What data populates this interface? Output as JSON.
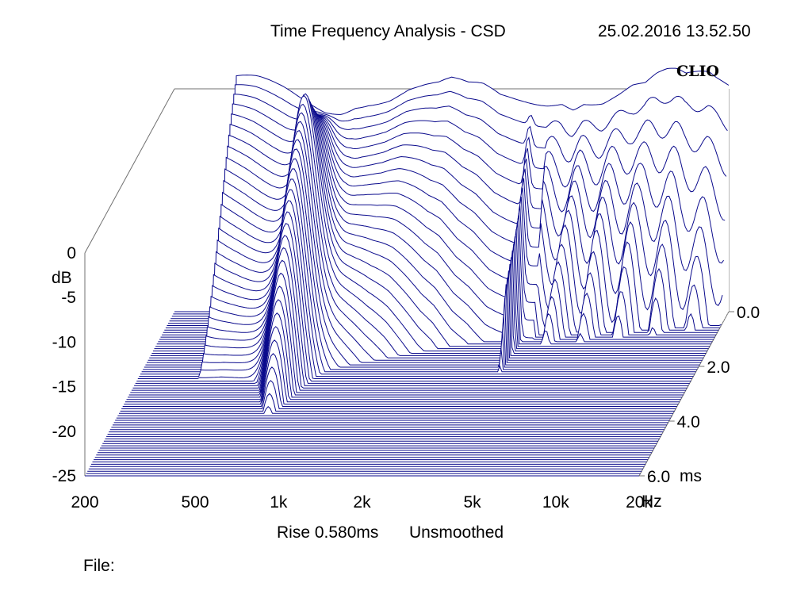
{
  "header": {
    "title": "Time Frequency Analysis - CSD",
    "timestamp": "25.02.2016 13.52.50"
  },
  "logo": "CLIO",
  "footer": {
    "rise": "Rise 0.580ms",
    "smoothing": "Unsmoothed",
    "file_label": "File:"
  },
  "chart_data": {
    "type": "waterfall",
    "title": "Time Frequency Analysis - CSD",
    "y_axis": {
      "label": "dB",
      "ticks": [
        "0",
        "-5",
        "-10",
        "-15",
        "-20",
        "-25"
      ],
      "range": [
        -25,
        0
      ]
    },
    "x_axis": {
      "unit": "Hz",
      "scale": "log",
      "ticks": [
        "200",
        "500",
        "1k",
        "2k",
        "5k",
        "10k",
        "20k"
      ],
      "range": [
        200,
        20000
      ]
    },
    "z_axis": {
      "unit": "ms",
      "ticks": [
        "0.0",
        "2.0",
        "4.0",
        "6.0"
      ],
      "range": [
        0,
        6
      ]
    },
    "line_color": "#0a0a8c",
    "initial_response": {
      "freq_hz": [
        330,
        400,
        500,
        600,
        700,
        800,
        900,
        1000,
        1200,
        1400,
        1600,
        1800,
        2000,
        2300,
        2600,
        3000,
        3400,
        3900,
        4400,
        5000,
        5500,
        6000,
        7000,
        8000,
        9000,
        10000,
        11000,
        12000,
        13000,
        14000,
        15000,
        16000,
        17000,
        18000,
        19000,
        20000
      ],
      "db": [
        -0.5,
        -0.4,
        -0.6,
        -1.0,
        -1.3,
        -1.0,
        -0.2,
        -0.1,
        -0.4,
        -0.2,
        -0.5,
        -0.8,
        -0.6,
        -1.2,
        -1.0,
        -1.5,
        -1.2,
        -0.8,
        -0.4,
        0.2,
        -0.4,
        0.1,
        -0.5,
        -0.3,
        0.0,
        -0.4,
        0.2,
        0.4,
        0.3,
        -0.2,
        0.1,
        0.4,
        0.6,
        0.3,
        0.2,
        0.1
      ]
    }
  }
}
